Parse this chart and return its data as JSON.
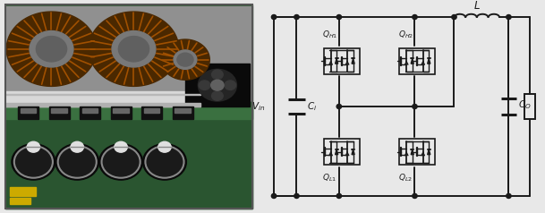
{
  "fig_width": 6.09,
  "fig_height": 2.38,
  "dpi": 100,
  "bg_color": "#e8e8e8",
  "schematic_bg": "#f5f5f5",
  "line_color": "#1a1a1a",
  "line_width": 1.4,
  "thin_lw": 1.0,
  "photo_split": 0.472,
  "labels": {
    "Vin": "$V_{in}$",
    "Ci": "$C_i$",
    "QH1": "$Q_{H1}$",
    "QH2": "$Q_{H2}$",
    "QL1": "$Q_{L1}$",
    "QL2": "$Q_{L2}$",
    "L": "$L$",
    "Co": "$C_O$"
  },
  "label_fontsize": 6.5,
  "photo": {
    "bg_outer": "#d0d0d0",
    "pcb_top_bg": "#888888",
    "pcb_green_dark": "#2a5530",
    "pcb_green_light": "#3a7040",
    "heatsink_color": "#c8c8c8",
    "heatsink_dark": "#a0a0a0",
    "fan_color": "#1a1a1a",
    "cap_dark": "#111111",
    "cap_top": "#e0e0e0",
    "inductor_brown": "#4a2800",
    "inductor_copper": "#a05000",
    "inductor_mid": "#7a5020"
  }
}
